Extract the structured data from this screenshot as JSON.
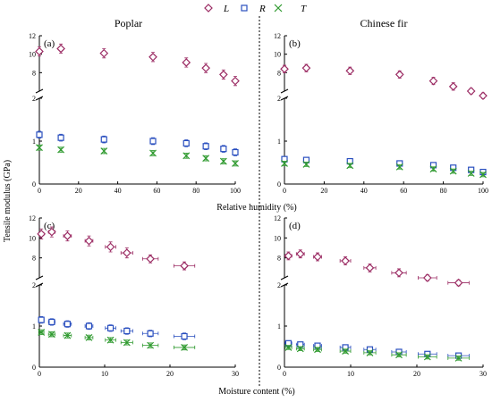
{
  "chart_data": {
    "type": "scatter",
    "legend": {
      "placement": "top-center",
      "entries": [
        {
          "label": "L",
          "marker": "diamond",
          "color": "#9b2b63"
        },
        {
          "label": "R",
          "marker": "square",
          "color": "#2a4fbf"
        },
        {
          "label": "T",
          "marker": "x",
          "color": "#2f9a2f"
        }
      ]
    },
    "ylabel": "Tensile modulus (GPa)",
    "row_xlabels": [
      "Relative humidity (%)",
      "Moisture content (%)"
    ],
    "panels": [
      {
        "letter": "(a)",
        "title": "Poplar",
        "xlim": [
          0,
          100
        ],
        "xticks": [
          0,
          20,
          40,
          60,
          80,
          100
        ],
        "series": [
          {
            "name": "L",
            "x": [
              0,
              11,
              33,
              58,
              75,
              85,
              94,
              100
            ],
            "y": [
              10.3,
              10.6,
              10.1,
              9.7,
              9.1,
              8.5,
              7.8,
              7.1
            ],
            "err": [
              0.5,
              0.5,
              0.5,
              0.5,
              0.5,
              0.5,
              0.5,
              0.5
            ]
          },
          {
            "name": "R",
            "x": [
              0,
              11,
              33,
              58,
              75,
              85,
              94,
              100
            ],
            "y": [
              1.15,
              1.08,
              1.04,
              1.0,
              0.95,
              0.88,
              0.82,
              0.74
            ],
            "err": [
              0.08,
              0.08,
              0.08,
              0.08,
              0.08,
              0.08,
              0.08,
              0.08
            ]
          },
          {
            "name": "T",
            "x": [
              0,
              11,
              33,
              58,
              75,
              85,
              94,
              100
            ],
            "y": [
              0.85,
              0.8,
              0.77,
              0.72,
              0.66,
              0.6,
              0.53,
              0.48
            ],
            "err": [
              0.06,
              0.06,
              0.06,
              0.06,
              0.06,
              0.06,
              0.06,
              0.06
            ]
          }
        ]
      },
      {
        "letter": "(b)",
        "title": "Chinese fir",
        "xlim": [
          0,
          100
        ],
        "xticks": [
          0,
          20,
          40,
          60,
          80,
          100
        ],
        "series": [
          {
            "name": "L",
            "x": [
              0,
              11,
              33,
              58,
              75,
              85,
              94,
              100
            ],
            "y": [
              8.4,
              8.5,
              8.2,
              7.8,
              7.1,
              6.5,
              6.0,
              5.5
            ],
            "err": [
              0.4,
              0.4,
              0.4,
              0.4,
              0.4,
              0.4,
              0.3,
              0.3
            ]
          },
          {
            "name": "R",
            "x": [
              0,
              11,
              33,
              58,
              75,
              85,
              94,
              100
            ],
            "y": [
              0.58,
              0.56,
              0.53,
              0.48,
              0.44,
              0.38,
              0.33,
              0.28
            ],
            "err": [
              0.05,
              0.05,
              0.05,
              0.05,
              0.05,
              0.05,
              0.05,
              0.05
            ]
          },
          {
            "name": "T",
            "x": [
              0,
              11,
              33,
              58,
              75,
              85,
              94,
              100
            ],
            "y": [
              0.48,
              0.46,
              0.43,
              0.4,
              0.35,
              0.3,
              0.25,
              0.22
            ],
            "err": [
              0.05,
              0.05,
              0.05,
              0.05,
              0.05,
              0.05,
              0.05,
              0.05
            ]
          }
        ]
      },
      {
        "letter": "(c)",
        "title": "",
        "xlim": [
          0,
          30
        ],
        "xticks": [
          0,
          10,
          20,
          30
        ],
        "series": [
          {
            "name": "L",
            "x": [
              0.3,
              1.9,
              4.3,
              7.6,
              10.9,
              13.4,
              17.0,
              22.2
            ],
            "y": [
              10.4,
              10.6,
              10.2,
              9.7,
              9.1,
              8.5,
              7.9,
              7.2
            ],
            "err": [
              0.5,
              0.5,
              0.5,
              0.5,
              0.5,
              0.5,
              0.4,
              0.4
            ],
            "xerr": [
              0.4,
              0.5,
              0.6,
              0.6,
              0.8,
              0.9,
              1.2,
              1.6
            ]
          },
          {
            "name": "R",
            "x": [
              0.3,
              1.9,
              4.3,
              7.6,
              10.9,
              13.4,
              17.0,
              22.2
            ],
            "y": [
              1.15,
              1.1,
              1.05,
              1.0,
              0.95,
              0.88,
              0.82,
              0.75
            ],
            "err": [
              0.08,
              0.08,
              0.08,
              0.08,
              0.08,
              0.08,
              0.08,
              0.08
            ],
            "xerr": [
              0.4,
              0.5,
              0.6,
              0.6,
              0.8,
              0.9,
              1.2,
              1.6
            ]
          },
          {
            "name": "T",
            "x": [
              0.3,
              1.9,
              4.3,
              7.6,
              10.9,
              13.4,
              17.0,
              22.2
            ],
            "y": [
              0.85,
              0.8,
              0.77,
              0.72,
              0.66,
              0.6,
              0.53,
              0.48
            ],
            "err": [
              0.06,
              0.06,
              0.06,
              0.06,
              0.06,
              0.06,
              0.06,
              0.06
            ],
            "xerr": [
              0.4,
              0.5,
              0.6,
              0.6,
              0.8,
              0.9,
              1.2,
              1.6
            ]
          }
        ]
      },
      {
        "letter": "(d)",
        "title": "",
        "xlim": [
          0,
          30
        ],
        "xticks": [
          0,
          10,
          20,
          30
        ],
        "series": [
          {
            "name": "L",
            "x": [
              0.6,
              2.4,
              5.0,
              9.2,
              12.9,
              17.3,
              21.6,
              26.3
            ],
            "y": [
              8.2,
              8.4,
              8.1,
              7.7,
              7.0,
              6.5,
              6.0,
              5.5
            ],
            "err": [
              0.4,
              0.4,
              0.4,
              0.4,
              0.4,
              0.4,
              0.3,
              0.3
            ],
            "xerr": [
              0.5,
              0.6,
              0.6,
              0.8,
              0.9,
              1.1,
              1.4,
              1.6
            ]
          },
          {
            "name": "R",
            "x": [
              0.6,
              2.4,
              5.0,
              9.2,
              12.9,
              17.3,
              21.6,
              26.3
            ],
            "y": [
              0.58,
              0.55,
              0.52,
              0.48,
              0.43,
              0.37,
              0.32,
              0.28
            ],
            "err": [
              0.05,
              0.05,
              0.05,
              0.05,
              0.05,
              0.05,
              0.05,
              0.05
            ],
            "xerr": [
              0.5,
              0.6,
              0.6,
              0.8,
              0.9,
              1.1,
              1.4,
              1.6
            ]
          },
          {
            "name": "T",
            "x": [
              0.6,
              2.4,
              5.0,
              9.2,
              12.9,
              17.3,
              21.6,
              26.3
            ],
            "y": [
              0.48,
              0.45,
              0.43,
              0.39,
              0.35,
              0.3,
              0.25,
              0.22
            ],
            "err": [
              0.05,
              0.05,
              0.05,
              0.05,
              0.05,
              0.05,
              0.05,
              0.05
            ],
            "xerr": [
              0.5,
              0.6,
              0.6,
              0.8,
              0.9,
              1.1,
              1.4,
              1.6
            ]
          }
        ]
      }
    ],
    "y_axis_broken": true,
    "y_lower": {
      "range": [
        0,
        2
      ],
      "ticks": [
        0,
        1,
        2
      ]
    },
    "y_upper": {
      "range": [
        6,
        12
      ],
      "ticks": [
        8,
        10,
        12
      ]
    }
  }
}
